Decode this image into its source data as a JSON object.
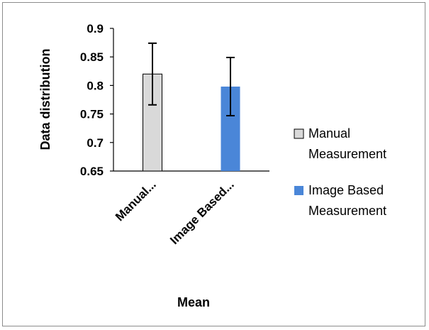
{
  "chart_data": {
    "type": "bar",
    "categories": [
      "Manual...",
      "Image Based..."
    ],
    "series": [
      {
        "values": [
          0.82,
          0.798
        ],
        "errors": [
          0.054,
          0.051
        ],
        "colors": [
          "#d9d9d9",
          "#4a86d8"
        ]
      }
    ],
    "ylim": [
      0.65,
      0.9
    ],
    "yticks": [
      0.9,
      0.85,
      0.8,
      0.75,
      0.7,
      0.65
    ],
    "ytick_labels": [
      "0.9",
      "0.85",
      "0.8",
      "0.75",
      "0.7",
      "0.65"
    ],
    "ylabel": "Data distribution",
    "xlabel": "Mean",
    "legend": {
      "position": "right",
      "entries": [
        {
          "line1": "Manual",
          "line2": "Measurement",
          "color": "#d9d9d9"
        },
        {
          "line1": "Image Based",
          "line2": "Measurement",
          "color": "#4a86d8"
        }
      ]
    }
  }
}
